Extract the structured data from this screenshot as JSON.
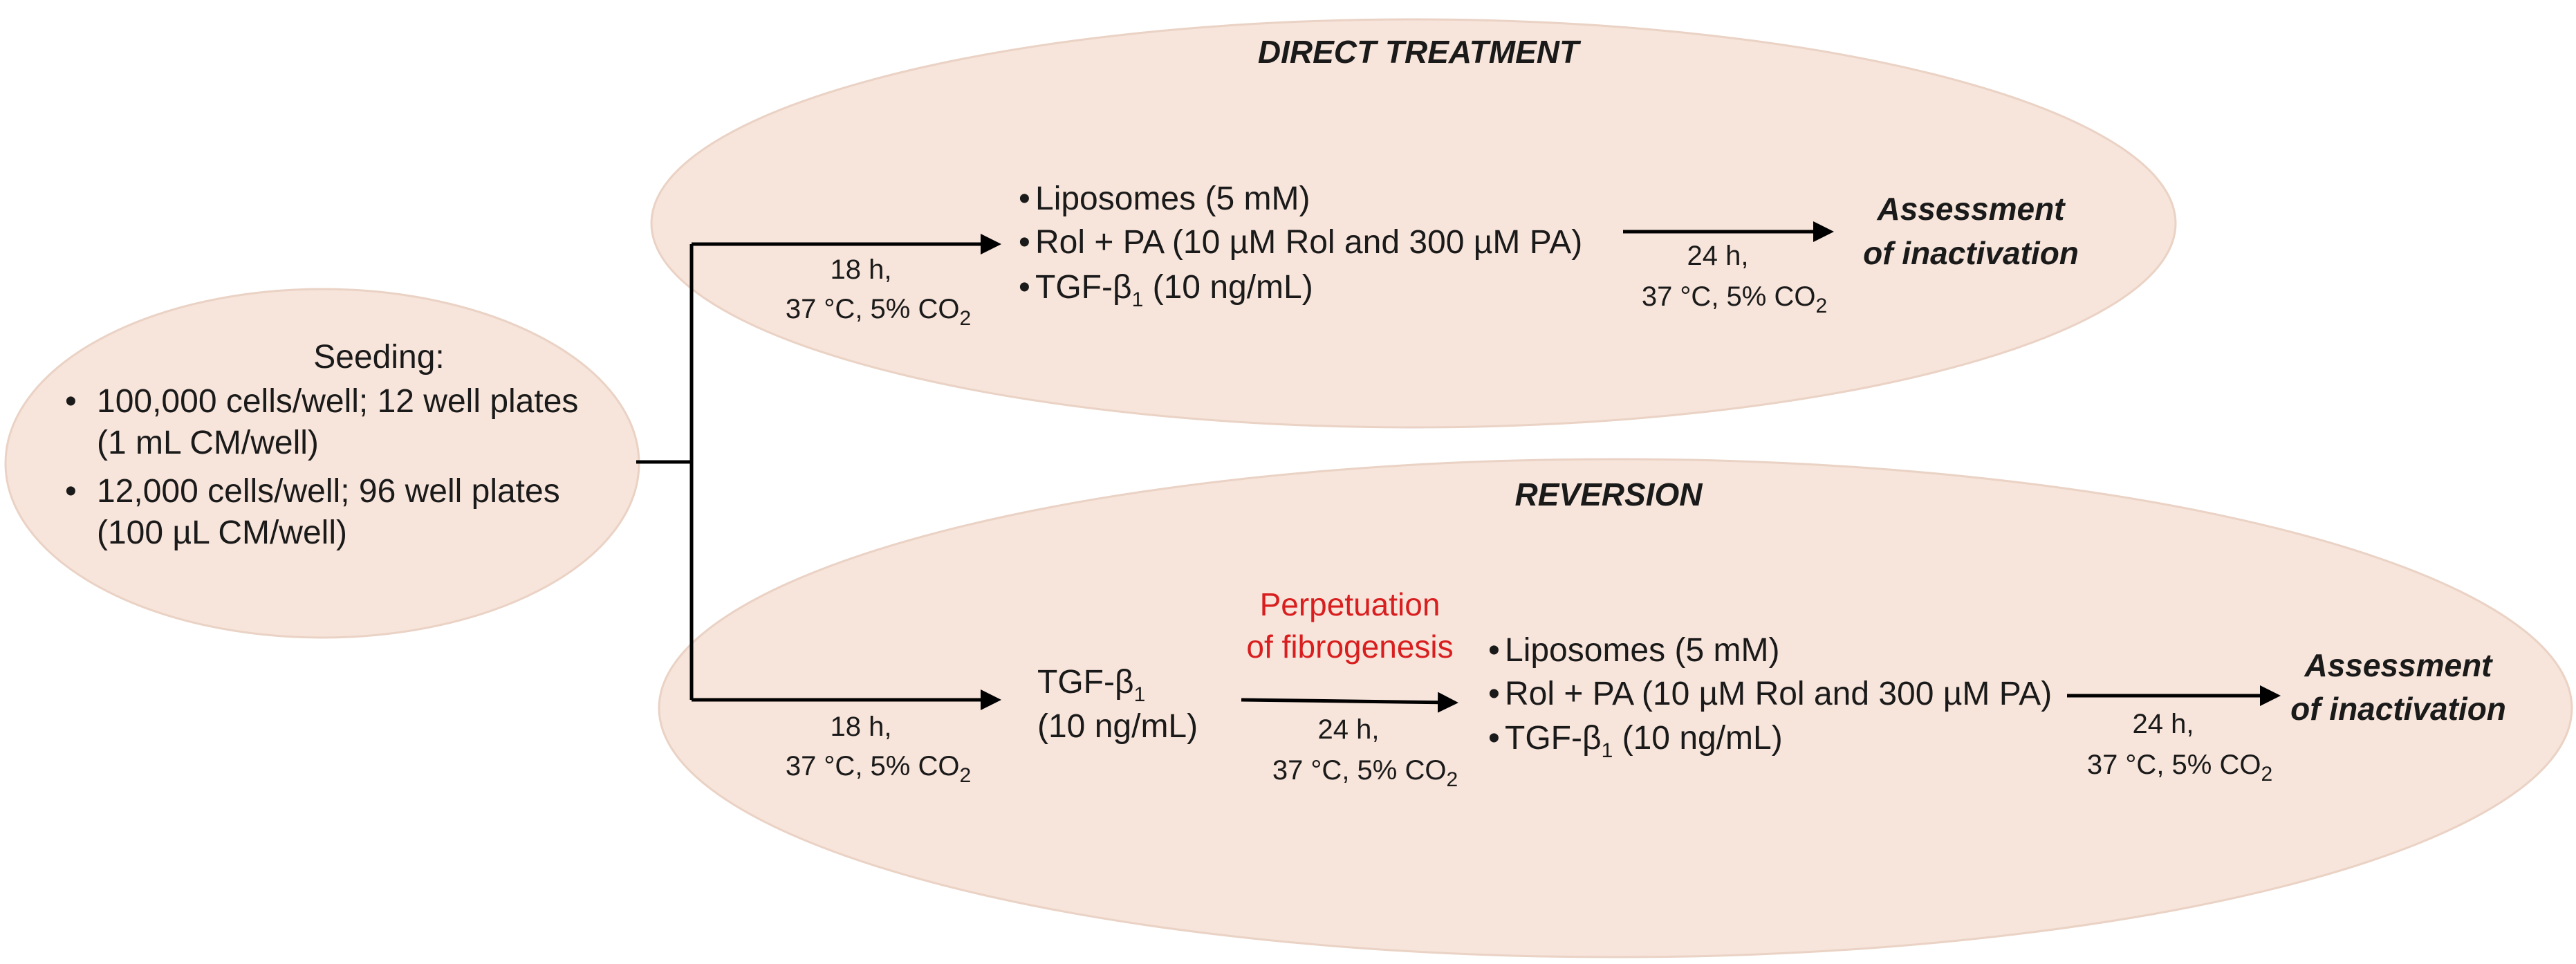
{
  "seeding": {
    "heading": "Seeding:",
    "items": [
      {
        "line1": "100,000 cells/well; 12 well plates",
        "line2": "(1 mL CM/well)"
      },
      {
        "line1": "12,000 cells/well; 96 well plates",
        "line2": "(100 µL CM/well)"
      }
    ]
  },
  "incubation": {
    "time_18h": "18 h,",
    "time_24h": "24 h,",
    "conditions_main": "37 °C, 5% CO",
    "conditions_sub": "2"
  },
  "bullet": "•",
  "direct": {
    "title": "DIRECT TREATMENT",
    "treatments": {
      "liposomes": "Liposomes (5 mM)",
      "rol_pa": "Rol + PA (10 µM Rol and 300 µM PA)",
      "tgf_main": "TGF-β",
      "tgf_sub": "1",
      "tgf_dose": " (10 ng/mL)"
    },
    "outcome_line1": "Assessment",
    "outcome_line2": "of inactivation"
  },
  "reversion": {
    "title": "REVERSION",
    "tgf_main": "TGF-β",
    "tgf_sub": "1",
    "tgf_dose": "(10 ng/mL)",
    "perpetuation_line1": "Perpetuation",
    "perpetuation_line2": "of fibrogenesis",
    "treatments": {
      "liposomes": "Liposomes (5 mM)",
      "rol_pa": "Rol + PA (10 µM Rol and 300 µM PA)",
      "tgf_main": "TGF-β",
      "tgf_sub": "1",
      "tgf_dose": " (10 ng/mL)"
    },
    "outcome_line1": "Assessment",
    "outcome_line2": "of inactivation"
  },
  "colors": {
    "ellipse_fill": "#f7e4da",
    "highlight_red": "#d81e1e",
    "line": "#000000"
  }
}
